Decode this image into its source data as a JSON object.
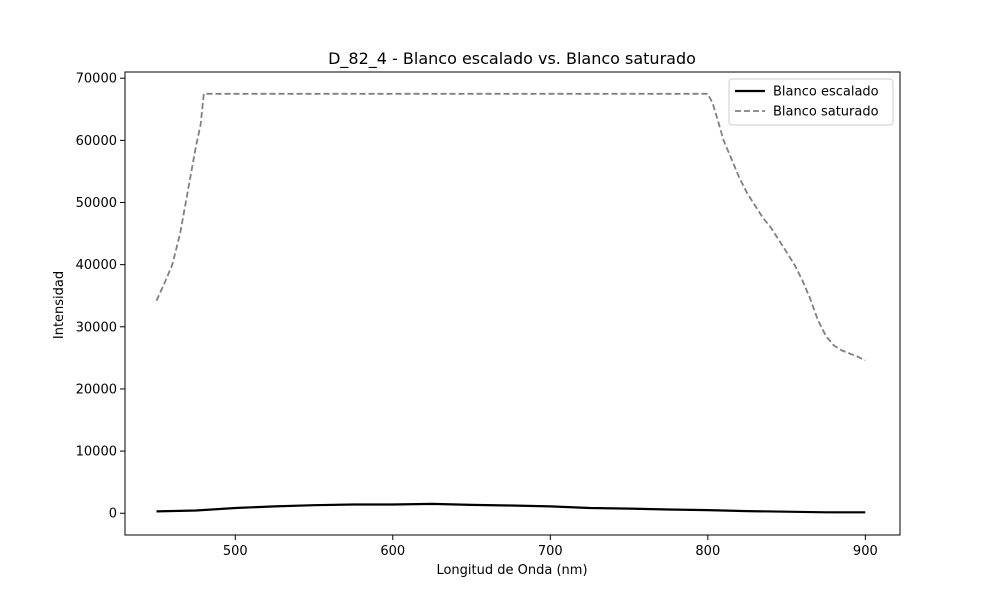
{
  "chart_data": {
    "type": "line",
    "title": "D_82_4 - Blanco escalado vs. Blanco saturado",
    "xlabel": "Longitud de Onda (nm)",
    "ylabel": "Intensidad",
    "xlim": [
      430,
      922
    ],
    "ylim": [
      -3500,
      71000
    ],
    "xticks": [
      500,
      600,
      700,
      800,
      900
    ],
    "yticks": [
      0,
      10000,
      20000,
      30000,
      40000,
      50000,
      60000,
      70000
    ],
    "grid": false,
    "legend_position": "top-right",
    "series": [
      {
        "name": "Blanco escalado",
        "color": "#000000",
        "style": "solid",
        "x": [
          450,
          475,
          500,
          525,
          550,
          575,
          600,
          625,
          650,
          675,
          700,
          725,
          750,
          775,
          800,
          825,
          850,
          875,
          900
        ],
        "y": [
          300,
          450,
          850,
          1100,
          1300,
          1400,
          1400,
          1500,
          1350,
          1250,
          1100,
          850,
          750,
          600,
          500,
          350,
          250,
          150,
          150
        ]
      },
      {
        "name": "Blanco saturado",
        "color": "#808080",
        "style": "dashed",
        "x": [
          450,
          455,
          460,
          465,
          470,
          475,
          478,
          480,
          500,
          550,
          600,
          650,
          700,
          750,
          800,
          803,
          806,
          810,
          815,
          820,
          825,
          830,
          835,
          840,
          845,
          850,
          855,
          860,
          865,
          870,
          875,
          880,
          885,
          890,
          895,
          900
        ],
        "y": [
          34200,
          37000,
          40000,
          45000,
          52000,
          59000,
          62500,
          67500,
          67500,
          67500,
          67500,
          67500,
          67500,
          67500,
          67500,
          66000,
          63500,
          60000,
          57000,
          54000,
          51500,
          49500,
          47500,
          46000,
          44000,
          42000,
          40000,
          37500,
          34500,
          31000,
          28500,
          27000,
          26200,
          25700,
          25200,
          24600
        ]
      }
    ]
  }
}
